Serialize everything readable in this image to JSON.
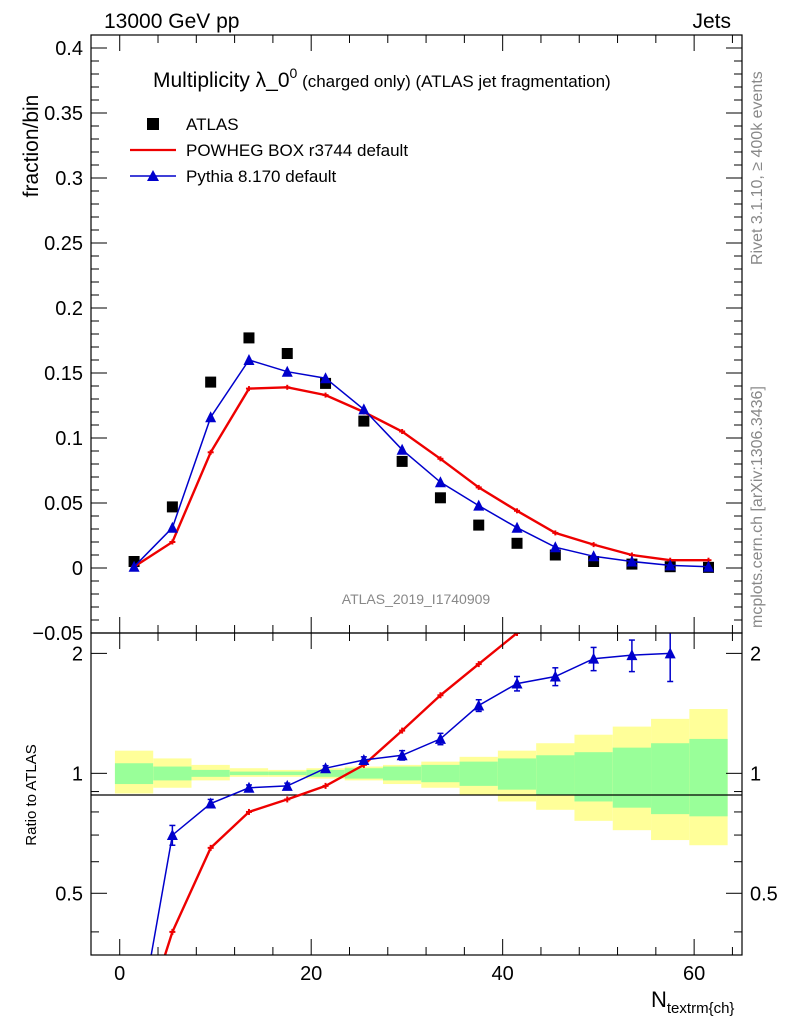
{
  "header": {
    "left": "13000 GeV pp",
    "right": "Jets"
  },
  "side_text": {
    "rivet": "Rivet 3.1.10, ≥ 400k events",
    "mcplots": "mcplots.cern.ch [arXiv:1306.3436]"
  },
  "chart_data": [
    {
      "type": "scatter",
      "panel": "main",
      "title_main": "Multiplicity λ_0",
      "title_sup": "0",
      "title_tail": " (charged only) (ATLAS jet fragmentation)",
      "ylabel": "fraction/bin",
      "watermark": "ATLAS_2019_I1740909",
      "xlim": [
        -3,
        65
      ],
      "ylim": [
        -0.05,
        0.41
      ],
      "y_ticks": [
        -0.05,
        0,
        0.05,
        0.1,
        0.15,
        0.2,
        0.25,
        0.3,
        0.35,
        0.4
      ],
      "y_tick_labels": [
        "−0.05",
        "0",
        "0.05",
        "0.1",
        "0.15",
        "0.2",
        "0.25",
        "0.3",
        "0.35",
        "0.4"
      ],
      "legend_position": "top-left",
      "series": [
        {
          "name": "ATLAS",
          "style": "markers",
          "marker": "square",
          "color": "#000000",
          "x": [
            1.5,
            5.5,
            9.5,
            13.5,
            17.5,
            21.5,
            25.5,
            29.5,
            33.5,
            37.5,
            41.5,
            45.5,
            49.5,
            53.5,
            57.5,
            61.5
          ],
          "y": [
            0.005,
            0.047,
            0.143,
            0.177,
            0.165,
            0.142,
            0.113,
            0.082,
            0.054,
            0.033,
            0.019,
            0.01,
            0.005,
            0.003,
            0.001,
            0.0005
          ]
        },
        {
          "name": "POWHEG BOX r3744 default",
          "style": "line",
          "color": "#ee0000",
          "x": [
            1.5,
            5.5,
            9.5,
            13.5,
            17.5,
            21.5,
            25.5,
            29.5,
            33.5,
            37.5,
            41.5,
            45.5,
            49.5,
            53.5,
            57.5,
            61.5
          ],
          "y": [
            0.001,
            0.02,
            0.089,
            0.138,
            0.139,
            0.133,
            0.12,
            0.105,
            0.084,
            0.062,
            0.044,
            0.027,
            0.018,
            0.01,
            0.006,
            0.006
          ]
        },
        {
          "name": "Pythia 8.170 default",
          "style": "line-markers",
          "marker": "triangle",
          "color": "#0000cc",
          "x": [
            1.5,
            5.5,
            9.5,
            13.5,
            17.5,
            21.5,
            25.5,
            29.5,
            33.5,
            37.5,
            41.5,
            45.5,
            49.5,
            53.5,
            57.5,
            61.5
          ],
          "y": [
            0.001,
            0.031,
            0.116,
            0.16,
            0.151,
            0.146,
            0.122,
            0.091,
            0.066,
            0.048,
            0.031,
            0.016,
            0.009,
            0.005,
            0.002,
            0.001
          ]
        }
      ]
    },
    {
      "type": "line",
      "panel": "ratio",
      "ylabel": "Ratio to ATLAS",
      "xlabel": "N",
      "xlabel_sub": "textrm{ch}",
      "xlim": [
        -3,
        65
      ],
      "ylim": [
        0.35,
        2.25
      ],
      "y_ticks": [
        0.5,
        1,
        2
      ],
      "y_tick_labels": [
        "0.5",
        "1",
        "2"
      ],
      "x_ticks": [
        0,
        20,
        40,
        60
      ],
      "x_tick_labels": [
        "0",
        "20",
        "40",
        "60"
      ],
      "bands": {
        "x_edges": [
          -0.5,
          3.5,
          7.5,
          11.5,
          15.5,
          19.5,
          23.5,
          27.5,
          31.5,
          35.5,
          39.5,
          43.5,
          47.5,
          51.5,
          55.5,
          59.5
        ],
        "green_lo": [
          0.94,
          0.96,
          0.98,
          0.99,
          0.99,
          0.98,
          0.97,
          0.96,
          0.95,
          0.93,
          0.91,
          0.88,
          0.85,
          0.82,
          0.79,
          0.78
        ],
        "green_hi": [
          1.06,
          1.04,
          1.02,
          1.01,
          1.01,
          1.02,
          1.03,
          1.04,
          1.05,
          1.07,
          1.09,
          1.11,
          1.13,
          1.16,
          1.19,
          1.22
        ],
        "yellow_lo": [
          0.89,
          0.92,
          0.96,
          0.98,
          0.98,
          0.97,
          0.96,
          0.94,
          0.92,
          0.88,
          0.85,
          0.81,
          0.76,
          0.72,
          0.68,
          0.66
        ],
        "yellow_hi": [
          1.14,
          1.09,
          1.05,
          1.03,
          1.02,
          1.03,
          1.04,
          1.05,
          1.07,
          1.1,
          1.14,
          1.19,
          1.25,
          1.31,
          1.37,
          1.45
        ]
      },
      "series": [
        {
          "name": "POWHEG BOX r3744 default",
          "color": "#ee0000",
          "x": [
            1.5,
            5.5,
            9.5,
            13.5,
            17.5,
            21.5,
            25.5,
            29.5,
            33.5,
            37.5,
            41.5,
            45.5
          ],
          "y": [
            0.2,
            0.4,
            0.65,
            0.8,
            0.86,
            0.93,
            1.05,
            1.28,
            1.57,
            1.88,
            2.25,
            2.6
          ]
        },
        {
          "name": "Pythia 8.170 default",
          "color": "#0000cc",
          "x": [
            1.5,
            5.5,
            9.5,
            13.5,
            17.5,
            21.5,
            25.5,
            29.5,
            33.5,
            37.5,
            41.5,
            45.5,
            49.5,
            53.5,
            57.5
          ],
          "y": [
            0.2,
            0.7,
            0.84,
            0.92,
            0.93,
            1.03,
            1.08,
            1.11,
            1.22,
            1.48,
            1.68,
            1.75,
            1.94,
            1.98,
            2.0
          ],
          "err": [
            0,
            0.04,
            0.02,
            0.015,
            0.015,
            0.015,
            0.02,
            0.03,
            0.04,
            0.05,
            0.07,
            0.09,
            0.13,
            0.18,
            0.3
          ]
        }
      ]
    }
  ]
}
